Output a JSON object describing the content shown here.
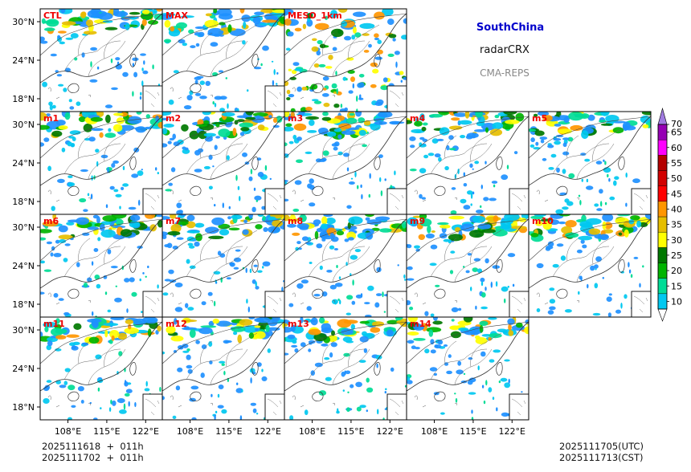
{
  "chart_data": {
    "type": "heatmap",
    "title": "SouthChina",
    "subtitle": "radarCRX",
    "model": "CMA-REPS",
    "panels": [
      "CTL",
      "MAX",
      "MESO_1km",
      "m1",
      "m2",
      "m3",
      "m4",
      "m5",
      "m6",
      "m7",
      "m8",
      "m9",
      "m10",
      "m11",
      "m12",
      "m13",
      "m14"
    ],
    "x_ticks": [
      "108°E",
      "115°E",
      "122°E"
    ],
    "y_ticks": [
      "30°N",
      "24°N",
      "18°N"
    ],
    "x_tick_values": [
      108,
      115,
      122
    ],
    "y_tick_values": [
      30,
      24,
      18
    ],
    "xlim": [
      103,
      125
    ],
    "ylim": [
      16,
      32
    ],
    "colorbar": {
      "levels": [
        10,
        15,
        20,
        25,
        30,
        35,
        40,
        45,
        50,
        55,
        60,
        65,
        70
      ],
      "labels": [
        "10",
        "15",
        "20",
        "25",
        "30",
        "35",
        "40",
        "45",
        "50",
        "55",
        "60",
        "65",
        "70"
      ],
      "colors": [
        "#1e90ff",
        "#00c8f0",
        "#00dc96",
        "#00b400",
        "#007800",
        "#ffff00",
        "#e6be00",
        "#ff9600",
        "#ff0000",
        "#d20000",
        "#b40000",
        "#ff00ff",
        "#9600b4",
        "#a07be0"
      ],
      "extend": "both"
    }
  },
  "footer": {
    "init_line1": "2025111618  +  011h",
    "init_line2": "2025111702  +  011h",
    "valid_utc": "2025111705(UTC)",
    "valid_cst": "2025111713(CST)"
  }
}
